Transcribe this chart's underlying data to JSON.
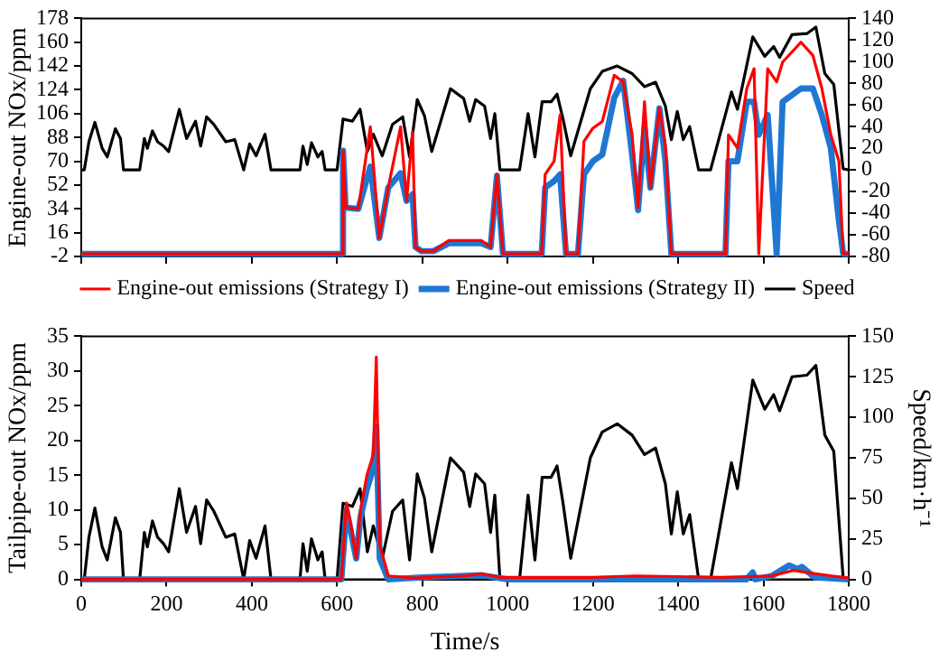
{
  "chart_data": [
    {
      "type": "line",
      "ylabel": "Engine-out NOx/ppm",
      "xlim": [
        0,
        1800
      ],
      "xticks": [
        0,
        200,
        400,
        600,
        800,
        1000,
        1200,
        1400,
        1600,
        1800
      ],
      "ylim": [
        -2,
        178
      ],
      "yticks": [
        -2,
        16,
        34,
        52,
        70,
        88,
        106,
        124,
        142,
        160,
        178
      ],
      "y2lim": [
        -80,
        140
      ],
      "y2ticks": [
        -80,
        -60,
        -40,
        -20,
        0,
        20,
        40,
        60,
        80,
        100,
        120,
        140
      ],
      "tick_labels": "y",
      "grid": false,
      "legend": "bottom",
      "marker": "none",
      "line_style": "solid",
      "series": [
        {
          "name": "Engine-out emissions (Strategy I)",
          "color": "#ff0000",
          "x": [
            0,
            610,
            614,
            620,
            650,
            678,
            699,
            720,
            749,
            763,
            777,
            784,
            798,
            826,
            862,
            939,
            960,
            975,
            989,
            1080,
            1088,
            1109,
            1123,
            1137,
            1165,
            1179,
            1200,
            1222,
            1250,
            1271,
            1292,
            1306,
            1321,
            1335,
            1356,
            1370,
            1384,
            1511,
            1518,
            1539,
            1561,
            1578,
            1589,
            1610,
            1631,
            1645,
            1688,
            1716,
            1737,
            1758,
            1777,
            1787,
            1800
          ],
          "values": [
            0,
            0,
            78,
            35,
            34,
            96,
            12,
            50,
            96,
            40,
            92,
            5,
            2,
            2,
            10,
            10,
            5,
            60,
            0,
            0,
            60,
            70,
            105,
            0,
            0,
            85,
            95,
            100,
            135,
            130,
            90,
            35,
            115,
            50,
            110,
            82,
            0,
            0,
            90,
            80,
            125,
            140,
            0,
            140,
            130,
            145,
            160,
            150,
            125,
            90,
            70,
            0,
            0
          ]
        },
        {
          "name": "Engine-out emissions (Strategy II)",
          "color": "#1f77d4",
          "x": [
            0,
            610,
            614,
            620,
            650,
            678,
            699,
            720,
            749,
            763,
            777,
            784,
            798,
            826,
            862,
            939,
            960,
            975,
            989,
            1080,
            1088,
            1109,
            1123,
            1137,
            1165,
            1179,
            1200,
            1222,
            1250,
            1271,
            1292,
            1306,
            1321,
            1335,
            1356,
            1370,
            1384,
            1511,
            1518,
            1539,
            1561,
            1578,
            1589,
            1610,
            1631,
            1645,
            1688,
            1716,
            1737,
            1758,
            1777,
            1787,
            1800
          ],
          "values": [
            0,
            0,
            78,
            35,
            34,
            66,
            12,
            50,
            61,
            40,
            45,
            5,
            2,
            2,
            8,
            8,
            5,
            59,
            0,
            0,
            50,
            55,
            60,
            0,
            0,
            60,
            70,
            75,
            118,
            131,
            75,
            33,
            95,
            50,
            110,
            70,
            0,
            0,
            70,
            70,
            115,
            115,
            90,
            105,
            0,
            115,
            125,
            125,
            105,
            80,
            25,
            0,
            0
          ]
        },
        {
          "name": "Speed",
          "color": "#000000",
          "axis": "y2",
          "x": [
            0,
            7,
            18,
            32,
            49,
            61,
            80,
            92,
            99,
            137,
            148,
            155,
            167,
            179,
            193,
            205,
            230,
            247,
            268,
            280,
            294,
            311,
            339,
            360,
            381,
            395,
            410,
            431,
            445,
            513,
            520,
            530,
            540,
            555,
            565,
            572,
            600,
            614,
            636,
            654,
            671,
            685,
            706,
            730,
            754,
            770,
            788,
            805,
            822,
            866,
            897,
            911,
            925,
            946,
            960,
            970,
            982,
            1028,
            1048,
            1064,
            1081,
            1102,
            1116,
            1130,
            1148,
            1194,
            1222,
            1257,
            1292,
            1321,
            1347,
            1370,
            1384,
            1398,
            1412,
            1427,
            1448,
            1476,
            1525,
            1539,
            1575,
            1603,
            1624,
            1638,
            1667,
            1702,
            1723,
            1744,
            1765,
            1787,
            1800
          ],
          "values": [
            0,
            0,
            26,
            44,
            20,
            12,
            38,
            29,
            0,
            0,
            29,
            20,
            36,
            26,
            22,
            17,
            56,
            29,
            45,
            22,
            49,
            42,
            26,
            28,
            0,
            24,
            13,
            33,
            0,
            0,
            22,
            5,
            25,
            12,
            17,
            0,
            0,
            47,
            45,
            56,
            17,
            33,
            13,
            42,
            49,
            12,
            65,
            50,
            17,
            75,
            66,
            45,
            65,
            59,
            29,
            52,
            0,
            0,
            52,
            12,
            63,
            63,
            70,
            47,
            13,
            75,
            91,
            96,
            89,
            77,
            81,
            59,
            28,
            54,
            28,
            40,
            0,
            0,
            72,
            56,
            123,
            105,
            114,
            104,
            125,
            126,
            132,
            89,
            79,
            1,
            0
          ]
        }
      ]
    },
    {
      "type": "line",
      "xlabel": "Time/s",
      "ylabel": "Tailpipe-out NOx/ppm",
      "y2label": "Speed/km·h⁻¹",
      "xlim": [
        0,
        1800
      ],
      "xticks": [
        0,
        200,
        400,
        600,
        800,
        1000,
        1200,
        1400,
        1600,
        1800
      ],
      "ylim": [
        0,
        35
      ],
      "yticks": [
        0,
        5,
        10,
        15,
        20,
        25,
        30,
        35
      ],
      "y2lim": [
        0,
        150
      ],
      "y2ticks": [
        0,
        25,
        50,
        75,
        100,
        125,
        150
      ],
      "grid": false,
      "marker": "none",
      "line_style": "solid",
      "series": [
        {
          "color": "#ff0000",
          "x": [
            0,
            610,
            622,
            632,
            645,
            655,
            670,
            685,
            692,
            700,
            720,
            780,
            900,
            940,
            980,
            1200,
            1300,
            1500,
            1620,
            1670,
            1700,
            1760,
            1800
          ],
          "values": [
            0,
            0,
            11,
            8,
            3,
            10,
            15,
            18,
            32,
            5,
            0.5,
            0.2,
            0.5,
            0.8,
            0.3,
            0.3,
            0.5,
            0.3,
            0.5,
            1.3,
            1,
            0.5,
            0.2
          ]
        },
        {
          "color": "#1f77d4",
          "x": [
            0,
            610,
            622,
            632,
            645,
            655,
            670,
            685,
            692,
            700,
            720,
            800,
            940,
            1000,
            1560,
            1575,
            1580,
            1620,
            1660,
            1680,
            1690,
            1720,
            1800
          ],
          "values": [
            0,
            0,
            10,
            7,
            3,
            9,
            13,
            16,
            22,
            3,
            0,
            0.3,
            0.6,
            0,
            0,
            1,
            0,
            0.5,
            2,
            1.5,
            1.8,
            0.3,
            0
          ]
        },
        {
          "color": "#000000",
          "axis": "y2",
          "x": [
            0,
            7,
            18,
            32,
            49,
            61,
            80,
            92,
            99,
            137,
            148,
            155,
            167,
            179,
            193,
            205,
            230,
            247,
            268,
            280,
            294,
            311,
            339,
            360,
            381,
            395,
            410,
            431,
            445,
            513,
            520,
            530,
            540,
            555,
            565,
            572,
            600,
            614,
            636,
            654,
            671,
            685,
            706,
            730,
            754,
            770,
            788,
            805,
            822,
            866,
            897,
            911,
            925,
            946,
            960,
            970,
            982,
            1028,
            1048,
            1064,
            1081,
            1102,
            1116,
            1130,
            1148,
            1194,
            1222,
            1257,
            1292,
            1321,
            1347,
            1370,
            1384,
            1398,
            1412,
            1427,
            1448,
            1476,
            1525,
            1539,
            1575,
            1603,
            1624,
            1638,
            1667,
            1702,
            1723,
            1744,
            1765,
            1787,
            1800
          ],
          "values": [
            0,
            0,
            26,
            44,
            20,
            12,
            38,
            29,
            0,
            0,
            29,
            20,
            36,
            26,
            22,
            17,
            56,
            29,
            45,
            22,
            49,
            42,
            26,
            28,
            0,
            24,
            13,
            33,
            0,
            0,
            22,
            5,
            25,
            12,
            17,
            0,
            0,
            47,
            45,
            56,
            17,
            33,
            13,
            42,
            49,
            12,
            65,
            50,
            17,
            75,
            66,
            45,
            65,
            59,
            29,
            52,
            0,
            0,
            52,
            12,
            63,
            63,
            70,
            47,
            13,
            75,
            91,
            96,
            89,
            77,
            81,
            59,
            28,
            54,
            28,
            40,
            0,
            0,
            72,
            56,
            123,
            105,
            114,
            104,
            125,
            126,
            132,
            89,
            79,
            1,
            0
          ]
        }
      ]
    }
  ]
}
